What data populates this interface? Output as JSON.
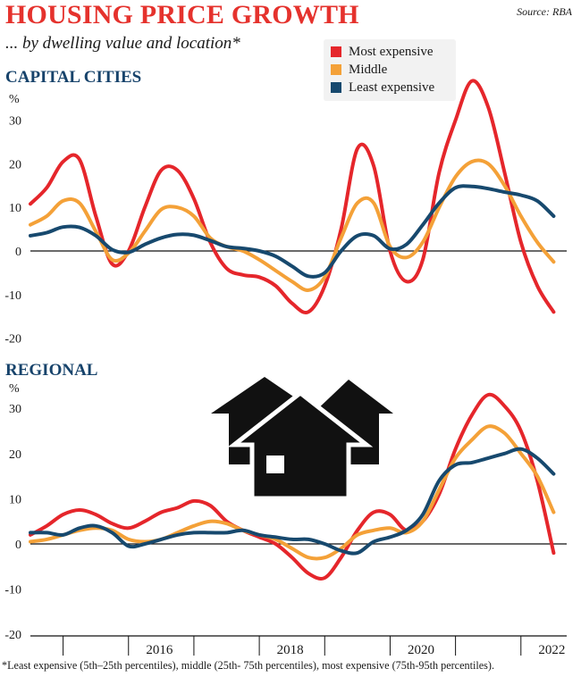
{
  "header": {
    "title": "HOUSING PRICE GROWTH",
    "subtitle": "... by dwelling value and location*",
    "source": "Source: RBA"
  },
  "footnote": "*Least expensive (5th–25th percentiles), middle (25th- 75th percentiles), most expensive (75th-95th percentiles).",
  "legend": {
    "items": [
      {
        "label": "Most expensive",
        "color": "#e5262b"
      },
      {
        "label": "Middle",
        "color": "#f4a138"
      },
      {
        "label": "Least expensive",
        "color": "#17496e"
      }
    ]
  },
  "panels": {
    "capital": {
      "title": "CAPITAL CITIES",
      "unit": "%"
    },
    "regional": {
      "title": "REGIONAL",
      "unit": "%"
    }
  },
  "icons": {
    "house": "houses-icon"
  },
  "chart_data": [
    {
      "type": "line",
      "title": "CAPITAL CITIES",
      "ylabel": "%",
      "ylim": [
        -20,
        30
      ],
      "yticks": [
        -20,
        -10,
        0,
        10,
        20,
        30
      ],
      "xlim": [
        2014.5,
        2022.7
      ],
      "xticks": [
        "2016",
        "2018",
        "2020",
        "2022"
      ],
      "x": [
        2014.5,
        2014.75,
        2015.0,
        2015.25,
        2015.5,
        2015.75,
        2016.0,
        2016.25,
        2016.5,
        2016.75,
        2017.0,
        2017.25,
        2017.5,
        2017.75,
        2018.0,
        2018.25,
        2018.5,
        2018.75,
        2019.0,
        2019.25,
        2019.5,
        2019.75,
        2020.0,
        2020.25,
        2020.5,
        2020.75,
        2021.0,
        2021.25,
        2021.5,
        2021.75,
        2022.0,
        2022.25,
        2022.5
      ],
      "series": [
        {
          "name": "Most expensive",
          "color": "#e5262b",
          "values": [
            10.8,
            14.5,
            20.5,
            21,
            8,
            -3,
            0,
            10,
            18.5,
            18.5,
            12,
            2,
            -4,
            -5.5,
            -6,
            -8,
            -12,
            -14,
            -8,
            5,
            23.5,
            19.5,
            0,
            -7,
            -2,
            18,
            30,
            39,
            33,
            18,
            2,
            -8,
            -14
          ]
        },
        {
          "name": "Middle",
          "color": "#f4a138",
          "values": [
            6,
            8,
            11.5,
            11,
            4.5,
            -2,
            -0.5,
            4.5,
            9.5,
            10,
            8,
            3,
            1,
            0,
            -2,
            -4.5,
            -7,
            -9,
            -6,
            3,
            11,
            11,
            1,
            -1.5,
            2,
            10,
            17,
            20.5,
            20,
            15,
            8,
            2,
            -2.5
          ]
        },
        {
          "name": "Least expensive",
          "color": "#17496e",
          "values": [
            3.5,
            4.2,
            5.5,
            5.4,
            3.5,
            0.3,
            -0.3,
            1.5,
            3,
            3.8,
            3.6,
            2.4,
            1,
            0.6,
            0,
            -1.2,
            -3.5,
            -5.8,
            -5,
            0,
            3.5,
            3.5,
            0.5,
            1.5,
            6,
            11,
            14.5,
            14.8,
            14.3,
            13.5,
            12.8,
            11.5,
            8
          ]
        }
      ]
    },
    {
      "type": "line",
      "title": "REGIONAL",
      "ylabel": "%",
      "ylim": [
        -20,
        30
      ],
      "yticks": [
        -20,
        -10,
        0,
        10,
        20,
        30
      ],
      "xlim": [
        2014.5,
        2022.7
      ],
      "xticks": [
        "2016",
        "2018",
        "2020",
        "2022"
      ],
      "x": [
        2014.5,
        2014.75,
        2015.0,
        2015.25,
        2015.5,
        2015.75,
        2016.0,
        2016.25,
        2016.5,
        2016.75,
        2017.0,
        2017.25,
        2017.5,
        2017.75,
        2018.0,
        2018.25,
        2018.5,
        2018.75,
        2019.0,
        2019.25,
        2019.5,
        2019.75,
        2020.0,
        2020.25,
        2020.5,
        2020.75,
        2021.0,
        2021.25,
        2021.5,
        2021.75,
        2022.0,
        2022.25,
        2022.5
      ],
      "series": [
        {
          "name": "Most expensive",
          "color": "#e5262b",
          "values": [
            2,
            4,
            6.5,
            7.5,
            6.5,
            4.5,
            3.5,
            5,
            7,
            8,
            9.5,
            8.5,
            5,
            3,
            1.5,
            0,
            -3,
            -6.5,
            -7.5,
            -3,
            3,
            7,
            6.5,
            3,
            5,
            11,
            21,
            28.5,
            33,
            30.5,
            25,
            14,
            -2
          ]
        },
        {
          "name": "Middle",
          "color": "#f4a138",
          "values": [
            0.5,
            1,
            2,
            3,
            3.5,
            3,
            1,
            0.5,
            1,
            2.5,
            4,
            5,
            4.5,
            3,
            2,
            1,
            -1,
            -3,
            -3,
            -1,
            2,
            3,
            3.5,
            2.5,
            5,
            12,
            19,
            23,
            26,
            24.5,
            20,
            15,
            7
          ]
        },
        {
          "name": "Least expensive",
          "color": "#17496e",
          "values": [
            2.5,
            2.5,
            2,
            3.5,
            4,
            2.5,
            -0.5,
            0,
            1,
            2,
            2.5,
            2.5,
            2.5,
            3,
            2,
            1.5,
            1,
            1,
            0,
            -1.5,
            -2,
            0.5,
            1.5,
            3,
            6.5,
            14,
            17.5,
            18,
            19,
            20,
            21,
            19,
            15.5
          ]
        }
      ]
    }
  ]
}
